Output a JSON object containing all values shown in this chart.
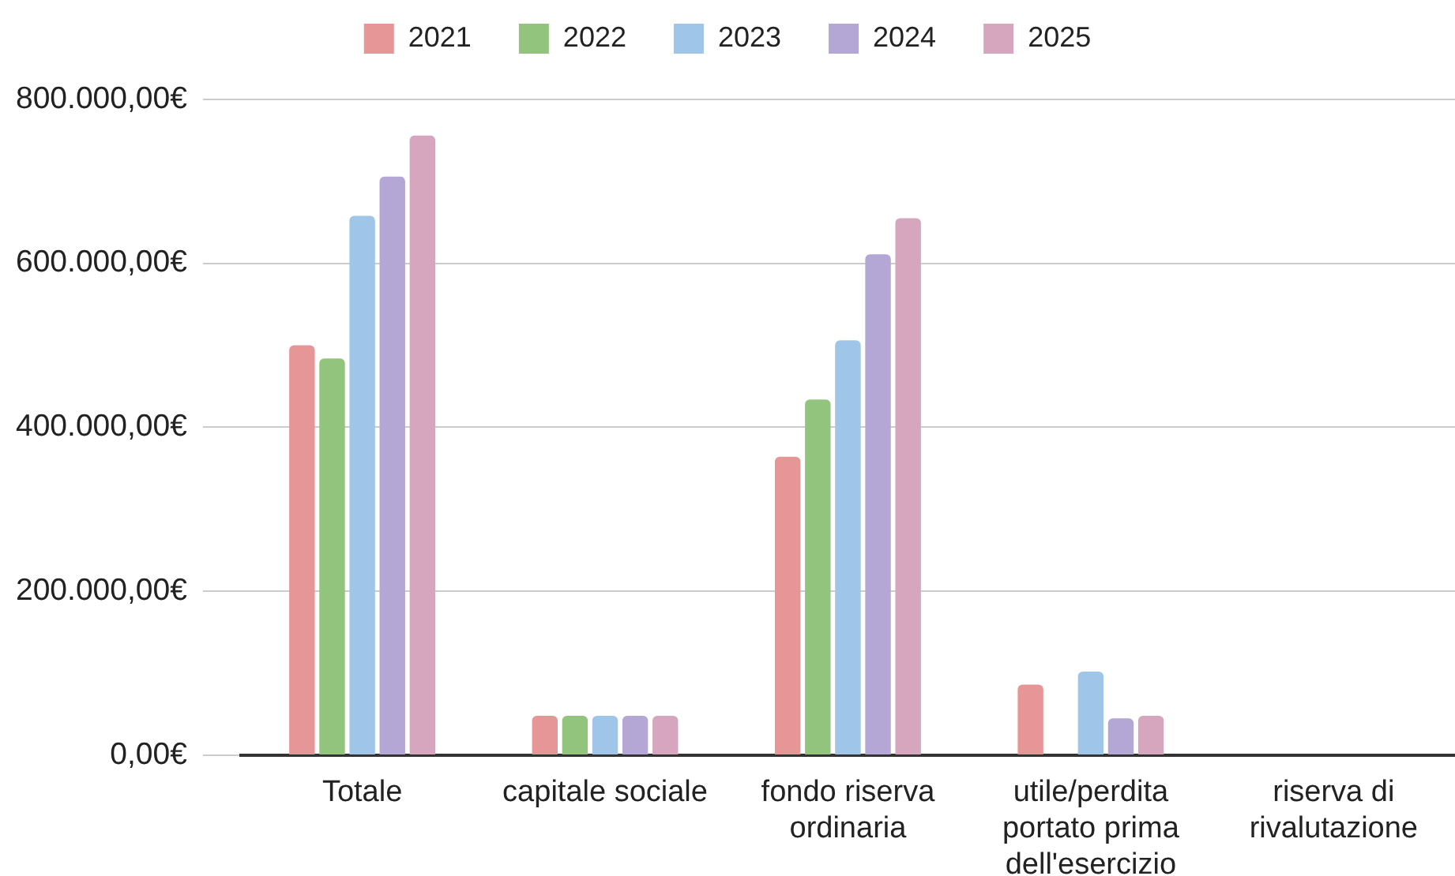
{
  "chart_data": {
    "type": "bar",
    "categories": [
      "Totale",
      "capitale sociale",
      "fondo riserva ordinaria",
      "utile/perdita portato prima dell'esercizio",
      "riserva di rivalutazione"
    ],
    "series": [
      {
        "name": "2021",
        "color": "#e69696",
        "values": [
          500000,
          48000,
          364000,
          86000,
          null
        ]
      },
      {
        "name": "2022",
        "color": "#93c47d",
        "values": [
          484000,
          48000,
          434000,
          null,
          null
        ]
      },
      {
        "name": "2023",
        "color": "#9fc5e8",
        "values": [
          658000,
          48000,
          506000,
          102000,
          null
        ]
      },
      {
        "name": "2024",
        "color": "#b4a7d6",
        "values": [
          706000,
          48000,
          611000,
          45000,
          null
        ]
      },
      {
        "name": "2025",
        "color": "#d5a6bd",
        "values": [
          756000,
          48000,
          655000,
          48000,
          null
        ]
      }
    ],
    "ylim": [
      0,
      800000
    ],
    "yticks": [
      {
        "value": 0,
        "label": "0,00€"
      },
      {
        "value": 200000,
        "label": "200.000,00€"
      },
      {
        "value": 400000,
        "label": "400.000,00€"
      },
      {
        "value": 600000,
        "label": "600.000,00€"
      },
      {
        "value": 800000,
        "label": "800.000,00€"
      }
    ],
    "grid": "y",
    "legend": "top"
  }
}
